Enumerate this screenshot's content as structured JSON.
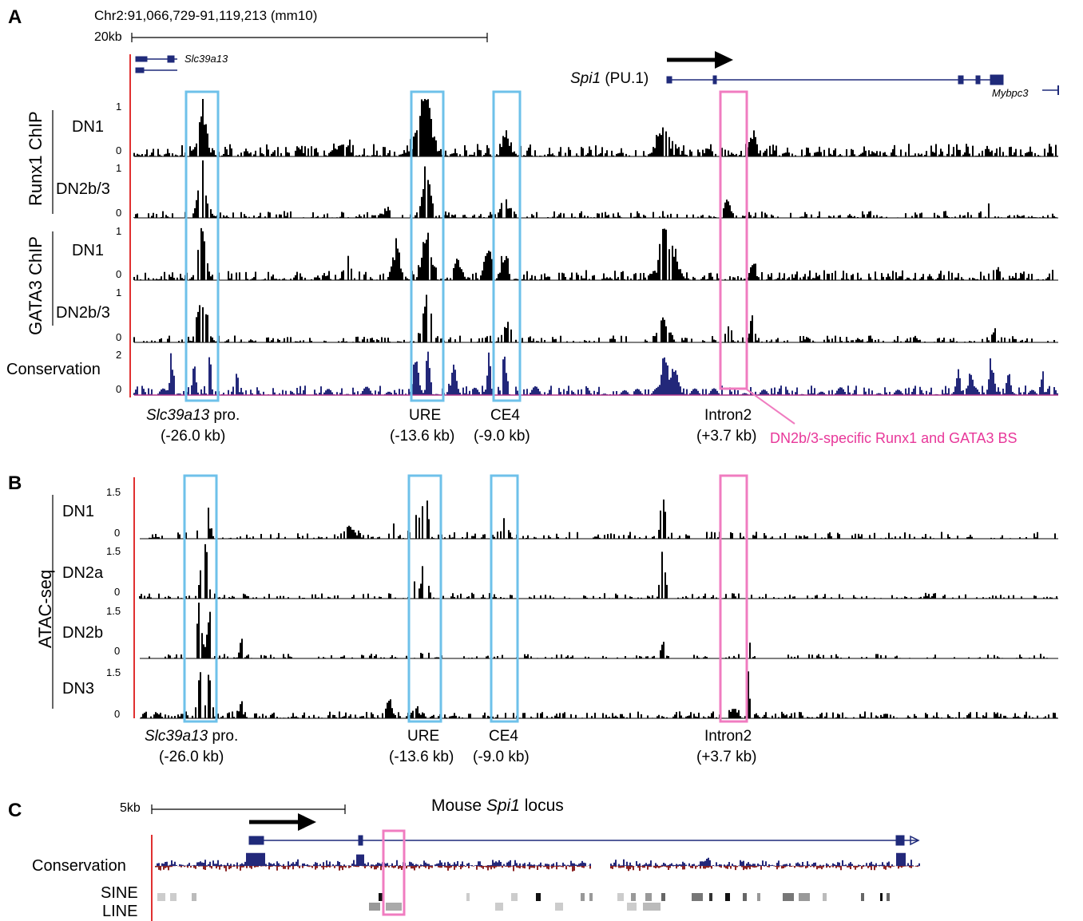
{
  "panels": {
    "a": "A",
    "b": "B",
    "c": "C"
  },
  "panelA": {
    "coords": "Chr2:91,066,729-91,119,213 (mm10)",
    "scale": "20kb",
    "genes": {
      "slc": "Slc39a13",
      "spi1": "Spi1",
      "spi1_suffix": "(PU.1)",
      "mybpc3": "Mybpc3"
    },
    "groups": {
      "runx1": "Runx1 ChIP",
      "gata3": "GATA3 ChIP"
    },
    "tracks": [
      {
        "label": "DN1",
        "top": "1",
        "bottom": "0"
      },
      {
        "label": "DN2b/3",
        "top": "1",
        "bottom": "0"
      },
      {
        "label": "DN1",
        "top": "1",
        "bottom": "0"
      },
      {
        "label": "DN2b/3",
        "top": "1",
        "bottom": "0"
      }
    ],
    "conservation": {
      "label": "Conservation",
      "top": "2",
      "bottom": "0"
    },
    "regions": [
      {
        "name": "Slc39a13",
        "suffix": " pro.",
        "dist": "(-26.0 kb)"
      },
      {
        "name": "URE",
        "dist": "(-13.6 kb)"
      },
      {
        "name": "CE4",
        "dist": "(-9.0 kb)"
      },
      {
        "name": "Intron2",
        "dist": "(+3.7 kb)"
      }
    ],
    "annotation": "DN2b/3-specific Runx1 and GATA3 BS"
  },
  "panelB": {
    "group": "ATAC-seq",
    "tracks": [
      {
        "label": "DN1",
        "top": "1.5",
        "bottom": "0"
      },
      {
        "label": "DN2a",
        "top": "1.5",
        "bottom": "0"
      },
      {
        "label": "DN2b",
        "top": "1.5",
        "bottom": "0"
      },
      {
        "label": "DN3",
        "top": "1.5",
        "bottom": "0"
      }
    ],
    "regions": [
      {
        "name": "Slc39a13",
        "suffix": " pro.",
        "dist": "(-26.0 kb)"
      },
      {
        "name": "URE",
        "dist": "(-13.6 kb)"
      },
      {
        "name": "CE4",
        "dist": "(-9.0 kb)"
      },
      {
        "name": "Intron2",
        "dist": "(+3.7 kb)"
      }
    ]
  },
  "panelC": {
    "scale": "5kb",
    "title_pre": "Mouse ",
    "title_gene": "Spi1",
    "title_post": " locus",
    "conservation": "Conservation",
    "sine": "SINE",
    "line": "LINE"
  },
  "colors": {
    "blue_box": "#6ec1ea",
    "pink_box": "#f07cc0",
    "gene_navy": "#1f2a7a",
    "conservation_navy": "#23287a",
    "baseline_magenta": "#b0368a",
    "neg_conservation": "#8a2222",
    "axis_red": "#e03030"
  }
}
